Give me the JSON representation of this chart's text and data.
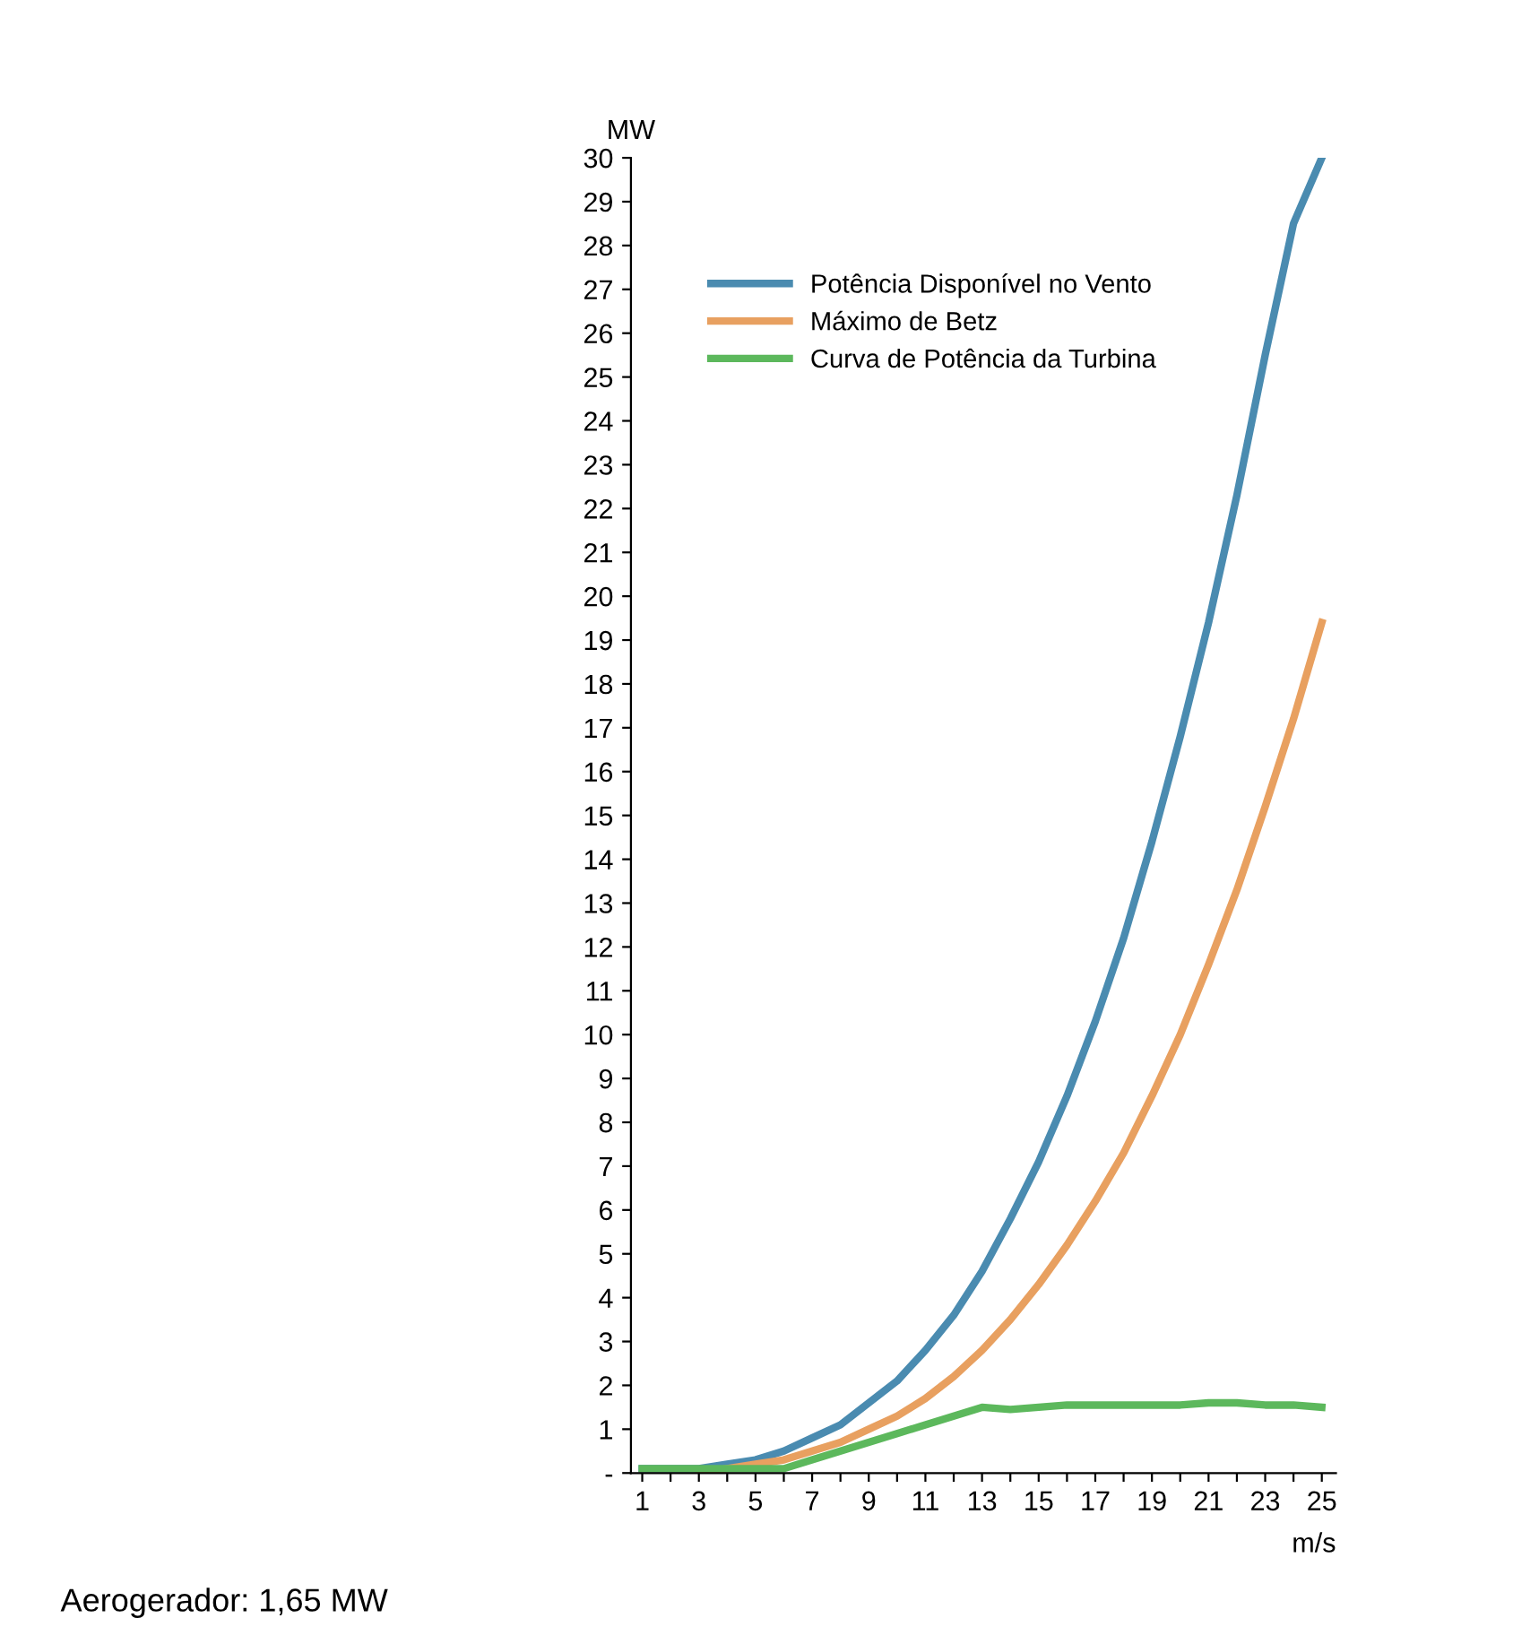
{
  "chart_data": {
    "type": "line",
    "xlabel": "m/s",
    "ylabel": "MW",
    "x": [
      1,
      2,
      3,
      4,
      5,
      6,
      7,
      8,
      9,
      10,
      11,
      12,
      13,
      14,
      15,
      16,
      17,
      18,
      19,
      20,
      21,
      22,
      23,
      24,
      25
    ],
    "series": [
      {
        "name": "Potência Disponível no Vento",
        "color": "#4a8bb0",
        "values": [
          0.1,
          0.1,
          0.1,
          0.2,
          0.3,
          0.5,
          0.8,
          1.1,
          1.6,
          2.1,
          2.8,
          3.6,
          4.6,
          5.8,
          7.1,
          8.6,
          10.3,
          12.2,
          14.4,
          16.8,
          19.4,
          22.3,
          25.5,
          28.5,
          30
        ]
      },
      {
        "name": "Máximo de Betz",
        "color": "#e8a060",
        "values": [
          null,
          null,
          0,
          0.1,
          0.2,
          0.3,
          0.5,
          0.7,
          1.0,
          1.3,
          1.7,
          2.2,
          2.8,
          3.5,
          4.3,
          5.2,
          6.2,
          7.3,
          8.6,
          10.0,
          11.6,
          13.3,
          15.2,
          17.2,
          19.4
        ]
      },
      {
        "name": "Curva de Potência da Turbina",
        "color": "#5cb85c",
        "values": [
          0.1,
          0.1,
          0.1,
          0.1,
          0.1,
          0.1,
          0.3,
          0.5,
          0.7,
          0.9,
          1.1,
          1.3,
          1.5,
          1.45,
          1.5,
          1.55,
          1.55,
          1.55,
          1.55,
          1.55,
          1.6,
          1.6,
          1.55,
          1.55,
          1.5
        ]
      }
    ],
    "xlim": [
      0.6,
      25.5
    ],
    "ylim": [
      0,
      30
    ],
    "xticks": [
      1,
      {
        "value": 2,
        "label": null
      },
      3,
      {
        "value": 4,
        "label": null
      },
      5,
      {
        "value": 6,
        "label": null
      },
      7,
      {
        "value": 8,
        "label": null
      },
      9,
      {
        "value": 10,
        "label": null
      },
      11,
      {
        "value": 12,
        "label": null
      },
      13,
      {
        "value": 14,
        "label": null
      },
      15,
      {
        "value": 16,
        "label": null
      },
      17,
      {
        "value": 18,
        "label": null
      },
      19,
      {
        "value": 20,
        "label": null
      },
      21,
      {
        "value": 22,
        "label": null
      },
      23,
      {
        "value": 24,
        "label": null
      },
      25
    ],
    "yticks": [
      {
        "value": 0,
        "label": "-"
      },
      1,
      2,
      3,
      4,
      5,
      6,
      7,
      8,
      9,
      10,
      11,
      12,
      13,
      14,
      15,
      16,
      17,
      18,
      19,
      20,
      21,
      22,
      23,
      24,
      25,
      26,
      27,
      28,
      29,
      30
    ],
    "legend": "top left",
    "grid": false,
    "annotations": [
      "Aerogerador: 1,65 MW"
    ]
  }
}
